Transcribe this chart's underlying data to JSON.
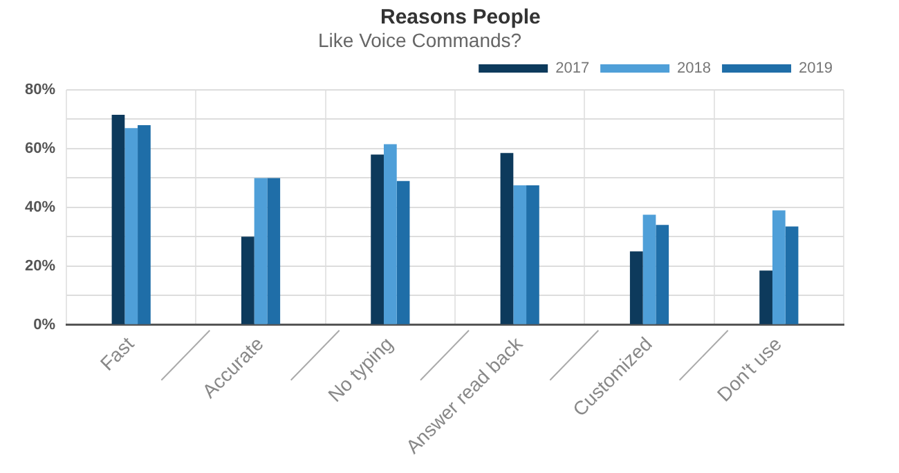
{
  "chart_data": {
    "type": "bar",
    "title": "Reasons People",
    "subtitle": "Like Voice Commands?",
    "categories": [
      "Fast",
      "Accurate",
      "No typing",
      "Answer read back",
      "Customized",
      "Don't use"
    ],
    "series": [
      {
        "name": "2017",
        "color": "#0d3a5c",
        "values": [
          71.5,
          30,
          58,
          58.5,
          25,
          18.5
        ]
      },
      {
        "name": "2018",
        "color": "#4f9fd8",
        "values": [
          67,
          50,
          61.5,
          47.5,
          37.5,
          39
        ]
      },
      {
        "name": "2019",
        "color": "#1f6ea8",
        "values": [
          68,
          50,
          49,
          47.5,
          34,
          33.5
        ]
      }
    ],
    "ylim": [
      0,
      80
    ],
    "yticks": [
      {
        "value": 0,
        "label": "0%"
      },
      {
        "value": 10,
        "label": null
      },
      {
        "value": 20,
        "label": "20%"
      },
      {
        "value": 30,
        "label": null
      },
      {
        "value": 40,
        "label": "40%"
      },
      {
        "value": 50,
        "label": null
      },
      {
        "value": 60,
        "label": "60%"
      },
      {
        "value": 70,
        "label": null
      },
      {
        "value": 80,
        "label": "80%"
      }
    ],
    "grid": true,
    "legend": "top right"
  }
}
